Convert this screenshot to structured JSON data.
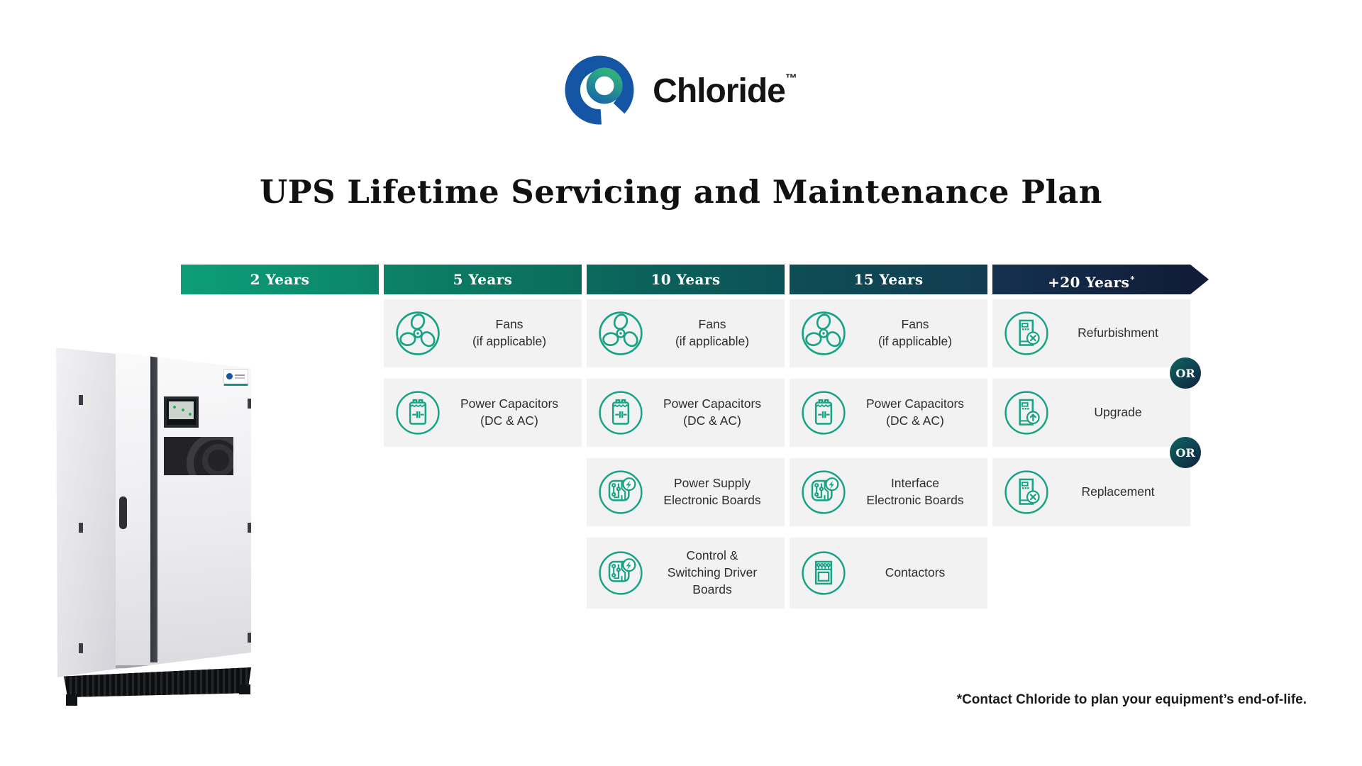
{
  "brand": {
    "name": "Chloride",
    "trademark": "™"
  },
  "title": "UPS Lifetime Servicing and Maintenance Plan",
  "footnote": "*Contact Chloride to plan your equipment’s end-of-life.",
  "colors": {
    "accent_green": "#17A385",
    "card_bg": "#F2F2F2",
    "card_text": "#2E2E30",
    "logo_blue": "#1456A5",
    "logo_green": "#2FAE7E",
    "header_text": "#FFFFFF",
    "or_badge_gradient": [
      "#0E6060",
      "#0F2742"
    ]
  },
  "timeline": {
    "columns": [
      {
        "label": "2 Years",
        "gradient": [
          "#0D9E78",
          "#0C8568"
        ],
        "items": []
      },
      {
        "label": "5 Years",
        "gradient": [
          "#0C8266",
          "#0B6C5C"
        ],
        "items": [
          {
            "icon": "fan-icon",
            "lines": [
              "Fans",
              "(if applicable)"
            ]
          },
          {
            "icon": "capacitor-icon",
            "lines": [
              "Power Capacitors",
              "(DC & AC)"
            ]
          }
        ]
      },
      {
        "label": "10 Years",
        "gradient": [
          "#0B695D",
          "#0C5156"
        ],
        "items": [
          {
            "icon": "fan-icon",
            "lines": [
              "Fans",
              "(if applicable)"
            ]
          },
          {
            "icon": "capacitor-icon",
            "lines": [
              "Power Capacitors",
              "(DC & AC)"
            ]
          },
          {
            "icon": "circuit-board-icon",
            "lines": [
              "Power Supply",
              "Electronic Boards"
            ]
          },
          {
            "icon": "circuit-board-icon",
            "lines": [
              "Control &",
              "Switching Driver",
              "Boards"
            ]
          }
        ]
      },
      {
        "label": "15 Years",
        "gradient": [
          "#0D4E54",
          "#123B52"
        ],
        "items": [
          {
            "icon": "fan-icon",
            "lines": [
              "Fans",
              "(if applicable)"
            ]
          },
          {
            "icon": "capacitor-icon",
            "lines": [
              "Power Capacitors",
              "(DC & AC)"
            ]
          },
          {
            "icon": "circuit-board-icon",
            "lines": [
              "Interface",
              "Electronic Boards"
            ]
          },
          {
            "icon": "contactor-icon",
            "lines": [
              "Contactors"
            ]
          }
        ]
      },
      {
        "label": "+20 Years",
        "label_suffix": "*",
        "arrow": true,
        "gradient": [
          "#14314F",
          "#101C38"
        ],
        "items": [
          {
            "icon": "refurbishment-icon",
            "lines": [
              "Refurbishment"
            ]
          },
          {
            "icon": "upgrade-icon",
            "lines": [
              "Upgrade"
            ]
          },
          {
            "icon": "replacement-icon",
            "lines": [
              "Replacement"
            ]
          }
        ],
        "separators": [
          "OR",
          "OR"
        ]
      }
    ]
  }
}
